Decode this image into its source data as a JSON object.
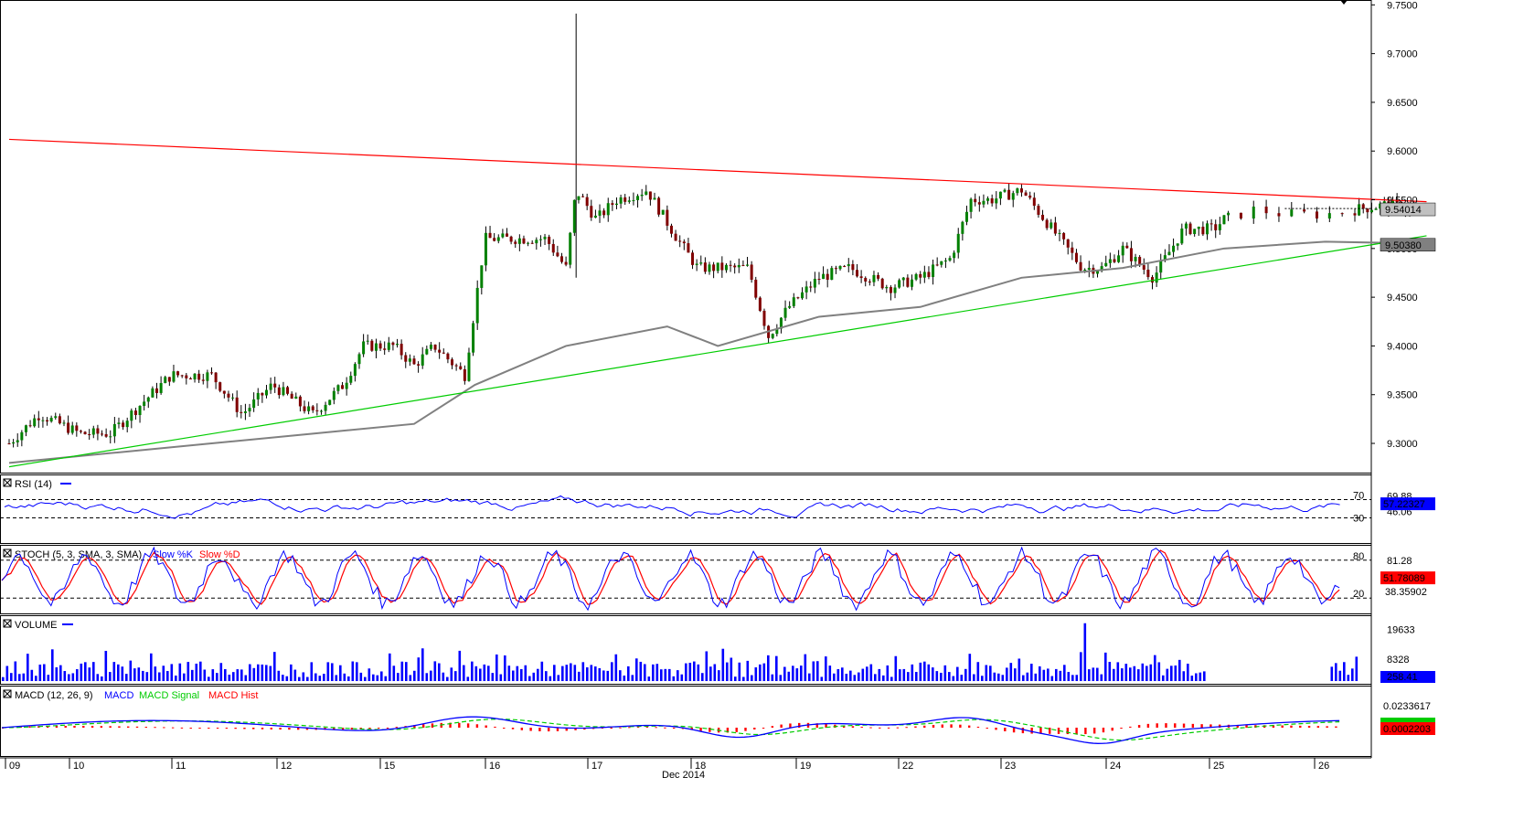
{
  "chart_data": [
    {
      "type": "candlestick",
      "panel": "price",
      "title": "",
      "y_ticks": [
        "9.7500",
        "9.7000",
        "9.6500",
        "9.6000",
        "9.5500",
        "9.5000",
        "9.4500",
        "9.4000",
        "9.3500",
        "9.3000"
      ],
      "ylim": [
        9.27,
        9.755
      ],
      "x_labels": [
        "09",
        "10",
        "11",
        "12",
        "15",
        "16",
        "17",
        "18",
        "19",
        "22",
        "23",
        "24",
        "25",
        "26"
      ],
      "x_sublabel": "Dec 2014",
      "last_price": "9.54014",
      "ma_value": "9.50380",
      "colors": {
        "up": "#008000",
        "down": "#800000",
        "resistance": "#ff0000",
        "support": "#00cc00",
        "ma": "#808080",
        "last_box": "#c0c0c0",
        "ma_box": "#808080"
      },
      "resistance_line": [
        [
          0,
          9.612
        ],
        [
          14,
          9.548
        ]
      ],
      "support_line": [
        [
          0,
          9.276
        ],
        [
          14,
          9.513
        ]
      ],
      "moving_average": [
        [
          0,
          9.28
        ],
        [
          1,
          9.29
        ],
        [
          2,
          9.3
        ],
        [
          3,
          9.31
        ],
        [
          4,
          9.32
        ],
        [
          4.6,
          9.36
        ],
        [
          5.5,
          9.4
        ],
        [
          6.5,
          9.42
        ],
        [
          7,
          9.4
        ],
        [
          8,
          9.43
        ],
        [
          9,
          9.44
        ],
        [
          10,
          9.47
        ],
        [
          11,
          9.48
        ],
        [
          12,
          9.5
        ],
        [
          13,
          9.507
        ],
        [
          14,
          9.505
        ]
      ],
      "price_path": [
        [
          0,
          9.3
        ],
        [
          0.3,
          9.33
        ],
        [
          0.7,
          9.31
        ],
        [
          1,
          9.31
        ],
        [
          1.3,
          9.34
        ],
        [
          1.6,
          9.37
        ],
        [
          2,
          9.37
        ],
        [
          2.3,
          9.33
        ],
        [
          2.6,
          9.36
        ],
        [
          3,
          9.33
        ],
        [
          3.3,
          9.36
        ],
        [
          3.5,
          9.4
        ],
        [
          3.8,
          9.4
        ],
        [
          4,
          9.38
        ],
        [
          4.2,
          9.4
        ],
        [
          4.5,
          9.37
        ],
        [
          4.6,
          9.44
        ],
        [
          4.7,
          9.51
        ],
        [
          5,
          9.51
        ],
        [
          5.3,
          9.51
        ],
        [
          5.5,
          9.48
        ],
        [
          5.6,
          9.56
        ],
        [
          5.8,
          9.53
        ],
        [
          6,
          9.55
        ],
        [
          6.3,
          9.56
        ],
        [
          6.6,
          9.51
        ],
        [
          6.8,
          9.48
        ],
        [
          7,
          9.48
        ],
        [
          7.3,
          9.48
        ],
        [
          7.5,
          9.41
        ],
        [
          7.7,
          9.44
        ],
        [
          8,
          9.47
        ],
        [
          8.3,
          9.48
        ],
        [
          8.7,
          9.46
        ],
        [
          9,
          9.47
        ],
        [
          9.3,
          9.49
        ],
        [
          9.5,
          9.55
        ],
        [
          9.7,
          9.55
        ],
        [
          10,
          9.56
        ],
        [
          10.3,
          9.52
        ],
        [
          10.6,
          9.48
        ],
        [
          10.8,
          9.48
        ],
        [
          11,
          9.5
        ],
        [
          11.3,
          9.47
        ],
        [
          11.6,
          9.52
        ],
        [
          11.9,
          9.52
        ],
        [
          12,
          9.53
        ],
        [
          12.3,
          9.54
        ],
        [
          12.6,
          9.535
        ],
        [
          13,
          9.535
        ],
        [
          13.3,
          9.54
        ],
        [
          13.6,
          9.545
        ],
        [
          13.9,
          9.54
        ]
      ],
      "spike": [
        [
          5.6,
          9.741
        ],
        [
          5.6,
          9.47
        ]
      ]
    },
    {
      "type": "line",
      "panel": "rsi",
      "title": "RSI (14)",
      "levels": [
        "70",
        "30"
      ],
      "readout_high": "69.88",
      "readout_low": "46.06",
      "last_value": "57.22327",
      "colors": {
        "line": "#0000ff",
        "box": "#0000ff"
      }
    },
    {
      "type": "line",
      "panel": "stoch",
      "title": "STOCH (5, 3, SMA, 3, SMA)",
      "series": [
        {
          "name": "Slow %K",
          "color": "#0000ff"
        },
        {
          "name": "Slow %D",
          "color": "#ff0000"
        }
      ],
      "levels": [
        "80",
        "20"
      ],
      "readout": "81.28",
      "last_value": "51.78089",
      "hidden_value": "38.35902",
      "colors": {
        "box": "#ff0000"
      }
    },
    {
      "type": "bar",
      "panel": "volume",
      "title": "VOLUME",
      "y_ticks": [
        "19633",
        "8328"
      ],
      "last_value": "258.41",
      "colors": {
        "bar": "#0000ff",
        "box": "#0000ff"
      }
    },
    {
      "type": "line",
      "panel": "macd",
      "title": "MACD (12, 26, 9)",
      "series": [
        {
          "name": "MACD",
          "color": "#0000ff"
        },
        {
          "name": "MACD Signal",
          "color": "#00cc00"
        },
        {
          "name": "MACD Hist",
          "color": "#ff0000"
        }
      ],
      "y_tick": "0.0233617",
      "last_value": "0.0002203",
      "colors": {
        "box": "#ff0000"
      }
    }
  ]
}
